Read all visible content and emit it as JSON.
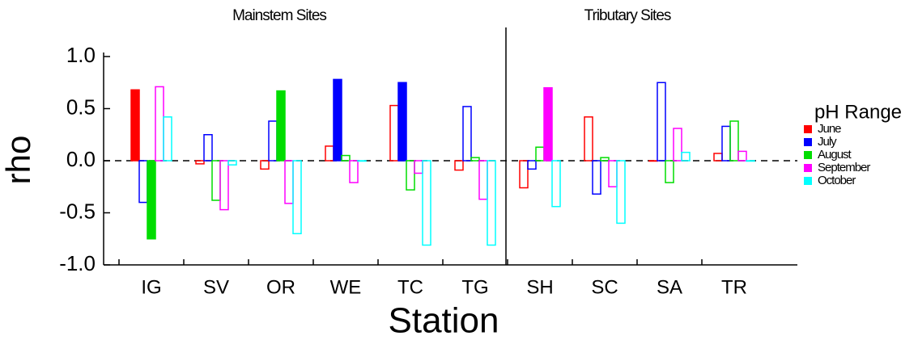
{
  "chart_data": {
    "type": "bar",
    "annotations": [
      "Mainstem Sites",
      "Tributary Sites"
    ],
    "xlabel": "Station",
    "ylabel": "rho",
    "legend_title": "pH Range",
    "legend_position": "right",
    "categories": [
      "IG",
      "SV",
      "OR",
      "WE",
      "TC",
      "TG",
      "SH",
      "SC",
      "SA",
      "TR"
    ],
    "ylim": [
      -1,
      1
    ],
    "yticks": [
      {
        "value": -1,
        "label": "-1.0"
      },
      -0.5,
      {
        "value": 0,
        "label": "0.0"
      },
      0.5,
      {
        "value": 1,
        "label": "1.0"
      }
    ],
    "series": [
      {
        "name": "June",
        "color": "#ff0000",
        "values": [
          0.68,
          -0.03,
          -0.08,
          0.14,
          0.53,
          -0.09,
          -0.26,
          0.42,
          0,
          0.07
        ],
        "filled": [
          true,
          false,
          false,
          false,
          false,
          false,
          false,
          false,
          false,
          false
        ]
      },
      {
        "name": "July",
        "color": "#0000ff",
        "values": [
          -0.4,
          0.25,
          0.38,
          0.78,
          0.75,
          0.52,
          -0.08,
          -0.32,
          0.75,
          0.33
        ],
        "filled": [
          false,
          false,
          false,
          true,
          true,
          false,
          false,
          false,
          false,
          false
        ]
      },
      {
        "name": "August",
        "color": "#00dd00",
        "values": [
          -0.75,
          -0.38,
          0.67,
          0.05,
          -0.28,
          0.03,
          0.13,
          0.03,
          -0.21,
          0.38
        ],
        "filled": [
          true,
          false,
          true,
          false,
          false,
          false,
          false,
          false,
          false,
          false
        ]
      },
      {
        "name": "September",
        "color": "#ff00ff",
        "values": [
          0.71,
          -0.47,
          -0.41,
          -0.21,
          -0.12,
          -0.37,
          0.7,
          -0.25,
          0.31,
          0.09
        ],
        "filled": [
          false,
          false,
          false,
          false,
          false,
          false,
          true,
          false,
          false,
          false
        ]
      },
      {
        "name": "October",
        "color": "#00ffff",
        "values": [
          0.42,
          -0.04,
          -0.7,
          0,
          -0.81,
          -0.81,
          -0.44,
          -0.6,
          0.08,
          0
        ],
        "filled": [
          false,
          false,
          false,
          false,
          false,
          false,
          false,
          false,
          false,
          false
        ]
      }
    ]
  }
}
